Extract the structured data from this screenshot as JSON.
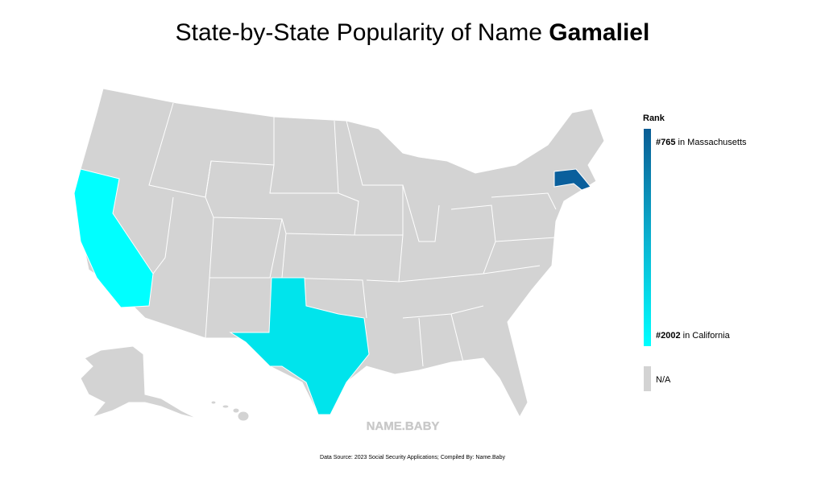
{
  "header": {
    "title_prefix": "State-by-State Popularity of Name",
    "name": "Gamaliel"
  },
  "legend": {
    "title": "Rank",
    "top": {
      "rank": "#765",
      "state": "in Massachusetts"
    },
    "bottom": {
      "rank": "#2002",
      "state": "in California"
    },
    "na": "N/A"
  },
  "watermark": "NAME.BABY",
  "footer": {
    "source": "Data Source: 2023 Social Security Applications; Compiled By: Name.Baby"
  }
}
